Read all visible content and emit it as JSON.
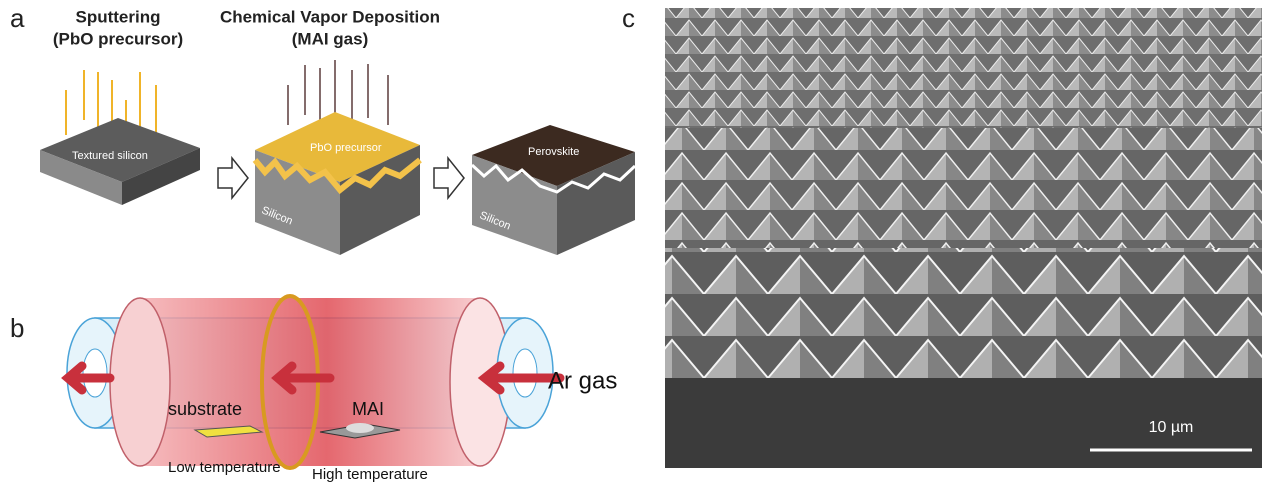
{
  "panels": {
    "a": {
      "label": "a",
      "steps": [
        {
          "title": [
            "Sputtering",
            "(PbO precursor)"
          ],
          "layers": [
            "Textured silicon"
          ]
        },
        {
          "title": [
            "Chemical Vapor Deposition",
            "(MAI gas)"
          ],
          "layers": [
            "PbO precursor",
            "Silicon"
          ]
        },
        {
          "layers": [
            "Perovskite",
            "Silicon"
          ]
        }
      ]
    },
    "b": {
      "label": "b",
      "labels": {
        "substrate": "substrate",
        "source": "MAI",
        "gas": "Ar gas",
        "low": "Low temperature",
        "high": "High temperature"
      }
    },
    "c": {
      "label": "c",
      "scale_bar": "10 µm"
    }
  }
}
